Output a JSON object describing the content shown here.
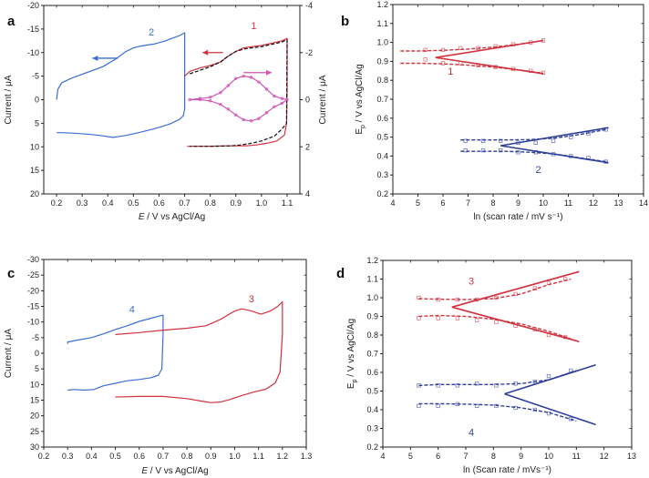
{
  "chart_data": [
    {
      "id": "a",
      "type": "line",
      "panel_label": "a",
      "xlabel_main": "E",
      "xlabel_rest": " / V vs AgCl/Ag",
      "ylabel": "Current / μA",
      "y2label": "Current / μA",
      "xlim": [
        0.15,
        1.15
      ],
      "ylim": [
        -20,
        20
      ],
      "y2lim": [
        -4,
        4
      ],
      "xticks": [
        0.2,
        0.3,
        0.4,
        0.5,
        0.6,
        0.7,
        0.8,
        0.9,
        1.0,
        1.1
      ],
      "yticks": [
        -20,
        -15,
        -10,
        -5,
        0,
        5,
        10,
        15,
        20
      ],
      "y2ticks": [
        -4,
        -2,
        0,
        2,
        4
      ],
      "colors": {
        "blue": "#3a6fd0",
        "red": "#d0323e",
        "magenta": "#d054b4",
        "dash": "#111111"
      },
      "series": [
        {
          "name": "2",
          "axis": "left",
          "color": "#3a6fd0",
          "dashed": false,
          "x": [
            0.2,
            0.205,
            0.22,
            0.26,
            0.32,
            0.38,
            0.43,
            0.47,
            0.5,
            0.53,
            0.58,
            0.62,
            0.65,
            0.68,
            0.7,
            0.7,
            0.7,
            0.695,
            0.68,
            0.64,
            0.58,
            0.52,
            0.47,
            0.42,
            0.37,
            0.32,
            0.26,
            0.22,
            0.2
          ],
          "y": [
            0,
            -2.2,
            -3.6,
            -4.6,
            -5.8,
            -7.0,
            -8.6,
            -10.2,
            -11.0,
            -11.4,
            -11.8,
            -12.4,
            -13.0,
            -13.6,
            -14.2,
            -7.0,
            2.0,
            3.4,
            4.2,
            5.2,
            6.2,
            7.0,
            7.6,
            8.0,
            7.6,
            7.3,
            7.1,
            7.0,
            7.0
          ]
        },
        {
          "name": "1",
          "axis": "right",
          "color": "#d0323e",
          "dashed": false,
          "x": [
            0.7,
            0.72,
            0.76,
            0.8,
            0.84,
            0.87,
            0.9,
            0.93,
            0.96,
            1.0,
            1.04,
            1.08,
            1.1,
            1.1,
            1.098,
            1.09,
            1.06,
            1.02,
            0.98,
            0.94,
            0.9,
            0.86,
            0.82,
            0.78,
            0.74,
            0.71
          ],
          "y": [
            -1.0,
            -1.2,
            -1.35,
            -1.45,
            -1.6,
            -1.85,
            -2.05,
            -2.2,
            -2.25,
            -2.3,
            -2.4,
            -2.5,
            -2.6,
            -0.5,
            1.0,
            1.5,
            1.75,
            1.85,
            1.92,
            1.96,
            1.96,
            1.96,
            1.97,
            1.98,
            1.98,
            1.98
          ]
        },
        {
          "name": "1-fit",
          "axis": "right",
          "color": "#111111",
          "dashed": true,
          "x": [
            0.72,
            0.76,
            0.8,
            0.84,
            0.87,
            0.9,
            0.93,
            0.96,
            1.0,
            1.04,
            1.08,
            1.1,
            1.098,
            1.08,
            1.05,
            1.0,
            0.96,
            0.92,
            0.88,
            0.84,
            0.8,
            0.76,
            0.72
          ],
          "y": [
            -1.1,
            -1.25,
            -1.4,
            -1.6,
            -1.85,
            -2.05,
            -2.15,
            -2.2,
            -2.25,
            -2.35,
            -2.45,
            -2.55,
            1.0,
            1.25,
            1.55,
            1.75,
            1.85,
            1.92,
            1.96,
            1.97,
            1.98,
            1.98,
            1.98
          ]
        },
        {
          "name": "1-ac",
          "axis": "right",
          "color": "#d054b4",
          "dashed": false,
          "x": [
            0.72,
            0.76,
            0.8,
            0.84,
            0.87,
            0.9,
            0.93,
            0.96,
            0.99,
            1.02,
            1.05,
            1.08,
            1.1,
            1.08,
            1.05,
            1.02,
            0.99,
            0.96,
            0.93,
            0.9,
            0.87,
            0.84,
            0.8,
            0.76,
            0.72
          ],
          "y": [
            0,
            -0.05,
            -0.1,
            -0.3,
            -0.6,
            -0.9,
            -1.0,
            -0.95,
            -0.75,
            -0.45,
            -0.15,
            -0.05,
            0,
            0.15,
            0.3,
            0.55,
            0.8,
            0.9,
            0.85,
            0.65,
            0.4,
            0.2,
            0.05,
            0,
            0
          ]
        }
      ],
      "annotations": [
        {
          "text": "2",
          "x": 0.57,
          "y": -13.6,
          "axis": "left",
          "color": "#3a6fd0"
        },
        {
          "text": "1",
          "x": 0.97,
          "y": -3.0,
          "axis": "right",
          "color": "#d0323e"
        }
      ]
    },
    {
      "id": "b",
      "type": "scatter",
      "panel_label": "b",
      "xlabel": "ln (scan rate / mV s⁻¹)",
      "ylabel_main": "E",
      "ylabel_sub": "p",
      "ylabel_rest": " / V vs AgCl/Ag",
      "xlim": [
        4,
        14
      ],
      "ylim": [
        0.2,
        1.2
      ],
      "xticks": [
        4,
        5,
        6,
        7,
        8,
        9,
        10,
        11,
        12,
        13,
        14
      ],
      "yticks": [
        0.2,
        0.3,
        0.4,
        0.5,
        0.6,
        0.7,
        0.8,
        0.9,
        1.0,
        1.1,
        1.2
      ],
      "series": [
        {
          "name": "1-anodic-pts",
          "color": "#d0323e",
          "x": [
            5.3,
            6.0,
            6.7,
            7.4,
            8.1,
            8.8,
            9.5,
            10.0
          ],
          "y": [
            0.96,
            0.96,
            0.97,
            0.97,
            0.98,
            0.99,
            1.0,
            1.01
          ]
        },
        {
          "name": "1-cathodic-pts",
          "color": "#d0323e",
          "x": [
            5.3,
            6.0,
            6.7,
            7.4,
            8.1,
            8.8,
            9.5,
            10.0
          ],
          "y": [
            0.91,
            0.89,
            0.89,
            0.88,
            0.87,
            0.86,
            0.85,
            0.84
          ]
        },
        {
          "name": "2-anodic-pts",
          "color": "#2e3f9a",
          "x": [
            6.9,
            7.6,
            8.3,
            9.0,
            9.7,
            10.4,
            11.1,
            11.8,
            12.5
          ],
          "y": [
            0.48,
            0.48,
            0.48,
            0.47,
            0.47,
            0.48,
            0.5,
            0.52,
            0.54
          ]
        },
        {
          "name": "2-cathodic-pts",
          "color": "#2e3f9a",
          "x": [
            6.9,
            7.6,
            8.3,
            9.0,
            9.7,
            10.4,
            11.1,
            11.8,
            12.5
          ],
          "y": [
            0.43,
            0.43,
            0.43,
            0.42,
            0.42,
            0.41,
            0.4,
            0.39,
            0.37
          ]
        }
      ],
      "lines": [
        {
          "name": "1-fit-anodic",
          "color": "#d0323e",
          "dashed": true,
          "x": [
            4.3,
            5.0,
            6.0,
            7.0,
            8.0,
            9.0,
            10.0
          ],
          "y": [
            0.955,
            0.955,
            0.958,
            0.965,
            0.975,
            0.99,
            1.01
          ]
        },
        {
          "name": "1-fit-cathodic",
          "color": "#d0323e",
          "dashed": true,
          "x": [
            4.3,
            5.0,
            6.0,
            7.0,
            8.0,
            9.0,
            10.0
          ],
          "y": [
            0.89,
            0.89,
            0.887,
            0.88,
            0.87,
            0.855,
            0.838
          ]
        },
        {
          "name": "1-lin-anodic",
          "color": "#d0323e",
          "dashed": false,
          "x": [
            5.7,
            10.0
          ],
          "y": [
            0.92,
            1.01
          ]
        },
        {
          "name": "1-lin-cathodic",
          "color": "#d0323e",
          "dashed": false,
          "x": [
            5.7,
            10.0
          ],
          "y": [
            0.92,
            0.835
          ]
        },
        {
          "name": "2-fit-anodic",
          "color": "#2e3f9a",
          "dashed": true,
          "x": [
            6.7,
            7.5,
            8.5,
            9.5,
            10.5,
            11.5,
            12.5
          ],
          "y": [
            0.485,
            0.485,
            0.485,
            0.487,
            0.495,
            0.515,
            0.54
          ]
        },
        {
          "name": "2-fit-cathodic",
          "color": "#2e3f9a",
          "dashed": true,
          "x": [
            6.7,
            7.5,
            8.5,
            9.5,
            10.5,
            11.5,
            12.5
          ],
          "y": [
            0.425,
            0.425,
            0.425,
            0.42,
            0.41,
            0.39,
            0.37
          ]
        },
        {
          "name": "2-lin-anodic",
          "color": "#2e3f9a",
          "dashed": false,
          "x": [
            8.3,
            12.6
          ],
          "y": [
            0.455,
            0.55
          ]
        },
        {
          "name": "2-lin-cathodic",
          "color": "#2e3f9a",
          "dashed": false,
          "x": [
            8.3,
            12.6
          ],
          "y": [
            0.455,
            0.365
          ]
        }
      ],
      "annotations": [
        {
          "text": "1",
          "x": 6.3,
          "y": 0.83,
          "color": "#d0323e"
        },
        {
          "text": "2",
          "x": 9.8,
          "y": 0.31,
          "color": "#2e3f9a"
        }
      ]
    },
    {
      "id": "c",
      "type": "line",
      "panel_label": "c",
      "xlabel_main": "E",
      "xlabel_rest": " / V vs AgCl/Ag",
      "ylabel": "Current / μA",
      "xlim": [
        0.2,
        1.3
      ],
      "ylim": [
        -30,
        30
      ],
      "xticks": [
        0.2,
        0.3,
        0.4,
        0.5,
        0.6,
        0.7,
        0.8,
        0.9,
        1.0,
        1.1,
        1.2,
        1.3
      ],
      "yticks": [
        -30,
        -25,
        -20,
        -15,
        -10,
        -5,
        0,
        5,
        10,
        15,
        20,
        25,
        30
      ],
      "series": [
        {
          "name": "4",
          "axis": "left",
          "color": "#3a6fd0",
          "dashed": false,
          "x": [
            0.3,
            0.3,
            0.34,
            0.4,
            0.45,
            0.5,
            0.55,
            0.6,
            0.65,
            0.7,
            0.7,
            0.695,
            0.68,
            0.65,
            0.6,
            0.55,
            0.5,
            0.45,
            0.41,
            0.37,
            0.33,
            0.3
          ],
          "y": [
            -3,
            -3.6,
            -4.2,
            -5.0,
            -6.2,
            -7.6,
            -8.8,
            -10.2,
            -11.2,
            -12.2,
            -6.0,
            5.0,
            7.0,
            7.8,
            8.4,
            8.8,
            9.6,
            10.4,
            11.6,
            11.8,
            11.6,
            11.8
          ]
        },
        {
          "name": "3",
          "axis": "left",
          "color": "#d0323e",
          "dashed": false,
          "x": [
            0.5,
            0.6,
            0.7,
            0.8,
            0.88,
            0.94,
            1.0,
            1.03,
            1.07,
            1.11,
            1.15,
            1.18,
            1.2,
            1.2,
            1.19,
            1.17,
            1.13,
            1.08,
            1.03,
            0.98,
            0.94,
            0.9,
            0.86,
            0.8,
            0.7,
            0.6,
            0.5
          ],
          "y": [
            -6.0,
            -6.6,
            -7.4,
            -8.0,
            -8.8,
            -10.8,
            -13.5,
            -14.2,
            -13.5,
            -12.5,
            -13.5,
            -15.0,
            -16.5,
            -6.0,
            6.0,
            9.5,
            11.5,
            12.4,
            13.5,
            14.8,
            15.6,
            15.8,
            15.3,
            14.5,
            13.8,
            13.8,
            14.0
          ]
        }
      ],
      "annotations": [
        {
          "text": "4",
          "x": 0.57,
          "y": -13.0,
          "color": "#3a6fd0"
        },
        {
          "text": "3",
          "x": 1.07,
          "y": -16.3,
          "color": "#d0323e"
        }
      ]
    },
    {
      "id": "d",
      "type": "scatter",
      "panel_label": "d",
      "xlabel": "ln (Scan rate / mVs⁻¹)",
      "ylabel_main": "E",
      "ylabel_sub": "p",
      "ylabel_rest": " / V vs AgCl/Ag",
      "xlim": [
        4,
        13
      ],
      "ylim": [
        0.2,
        1.2
      ],
      "xticks": [
        4,
        5,
        6,
        7,
        8,
        9,
        10,
        11,
        12,
        13
      ],
      "yticks": [
        0.2,
        0.3,
        0.4,
        0.5,
        0.6,
        0.7,
        0.8,
        0.9,
        1.0,
        1.1,
        1.2
      ],
      "series": [
        {
          "name": "3-anodic-pts",
          "color": "#d0323e",
          "x": [
            5.3,
            6.0,
            6.7,
            7.4,
            8.1,
            8.8,
            9.5,
            10.0,
            10.6
          ],
          "y": [
            1.0,
            0.99,
            0.99,
            0.99,
            1.0,
            1.02,
            1.05,
            1.08,
            1.1
          ]
        },
        {
          "name": "3-cathodic-pts",
          "color": "#d0323e",
          "x": [
            5.3,
            6.0,
            6.7,
            7.4,
            8.1,
            8.8,
            9.5,
            10.0,
            10.6
          ],
          "y": [
            0.89,
            0.89,
            0.89,
            0.88,
            0.87,
            0.85,
            0.83,
            0.8,
            0.79
          ]
        },
        {
          "name": "4-anodic-pts",
          "color": "#2e3f9a",
          "x": [
            5.3,
            6.0,
            6.7,
            7.4,
            8.1,
            8.8,
            9.5,
            10.0,
            10.8
          ],
          "y": [
            0.53,
            0.53,
            0.53,
            0.54,
            0.53,
            0.54,
            0.55,
            0.58,
            0.61
          ]
        },
        {
          "name": "4-cathodic-pts",
          "color": "#2e3f9a",
          "x": [
            5.3,
            6.0,
            6.7,
            7.4,
            8.1,
            8.8,
            9.5,
            10.0,
            10.8
          ],
          "y": [
            0.42,
            0.42,
            0.43,
            0.42,
            0.42,
            0.41,
            0.4,
            0.38,
            0.35
          ]
        }
      ],
      "lines": [
        {
          "name": "3-fit-anodic",
          "color": "#d0323e",
          "dashed": true,
          "x": [
            5.3,
            6.0,
            7.0,
            8.0,
            9.0,
            10.0,
            10.8
          ],
          "y": [
            0.995,
            0.992,
            0.99,
            0.995,
            1.02,
            1.07,
            1.1
          ]
        },
        {
          "name": "3-fit-cathodic",
          "color": "#d0323e",
          "dashed": true,
          "x": [
            5.3,
            6.0,
            7.0,
            8.0,
            9.0,
            10.0,
            10.8
          ],
          "y": [
            0.9,
            0.905,
            0.9,
            0.885,
            0.86,
            0.82,
            0.78
          ]
        },
        {
          "name": "3-lin-anodic",
          "color": "#d0323e",
          "dashed": false,
          "x": [
            6.5,
            11.1
          ],
          "y": [
            0.95,
            1.14
          ]
        },
        {
          "name": "3-lin-cathodic",
          "color": "#d0323e",
          "dashed": false,
          "x": [
            6.5,
            11.1
          ],
          "y": [
            0.95,
            0.765
          ]
        },
        {
          "name": "4-fit-anodic",
          "color": "#2e3f9a",
          "dashed": true,
          "x": [
            5.3,
            6.0,
            7.0,
            8.0,
            9.0,
            10.0,
            11.0
          ],
          "y": [
            0.53,
            0.535,
            0.535,
            0.535,
            0.54,
            0.56,
            0.61
          ]
        },
        {
          "name": "4-fit-cathodic",
          "color": "#2e3f9a",
          "dashed": true,
          "x": [
            5.3,
            6.0,
            7.0,
            8.0,
            9.0,
            10.0,
            11.0
          ],
          "y": [
            0.432,
            0.432,
            0.43,
            0.425,
            0.41,
            0.385,
            0.34
          ]
        },
        {
          "name": "4-lin-anodic",
          "color": "#2e3f9a",
          "dashed": false,
          "x": [
            8.4,
            11.7
          ],
          "y": [
            0.485,
            0.64
          ]
        },
        {
          "name": "4-lin-cathodic",
          "color": "#2e3f9a",
          "dashed": false,
          "x": [
            8.4,
            11.7
          ],
          "y": [
            0.485,
            0.32
          ]
        }
      ],
      "annotations": [
        {
          "text": "3",
          "x": 7.2,
          "y": 1.07,
          "color": "#d0323e"
        },
        {
          "text": "4",
          "x": 7.2,
          "y": 0.26,
          "color": "#2e3f9a"
        }
      ]
    }
  ]
}
